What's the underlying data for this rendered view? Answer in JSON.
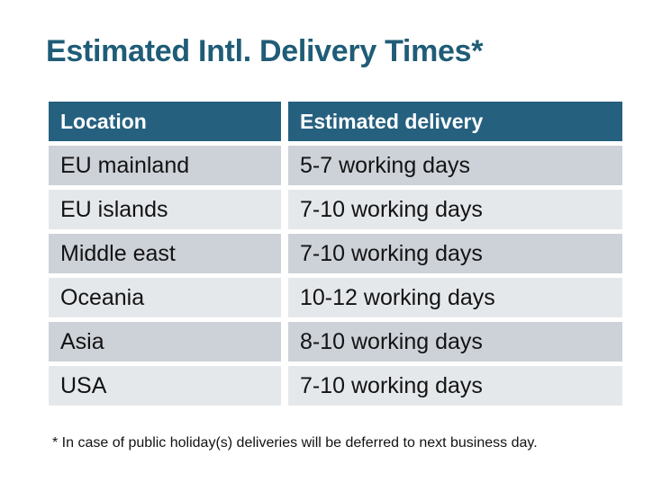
{
  "page": {
    "title": "Estimated Intl. Delivery Times*",
    "footnote": "* In case of public holiday(s) deliveries will be deferred to next business day."
  },
  "colors": {
    "title_text": "#1F5C77",
    "header_background": "#25607F",
    "header_text": "#FFFFFF",
    "row_dark": "#CDD1D8",
    "row_light": "#E5E8EB",
    "cell_text": "#131313",
    "page_background": "#FFFFFF"
  },
  "table": {
    "headers": {
      "location": "Location",
      "delivery": "Estimated delivery"
    },
    "rows": [
      {
        "location": "EU mainland",
        "delivery": "5-7 working days"
      },
      {
        "location": "EU islands",
        "delivery": "7-10 working days"
      },
      {
        "location": "Middle east",
        "delivery": "7-10 working days"
      },
      {
        "location": "Oceania",
        "delivery": "10-12 working days"
      },
      {
        "location": "Asia",
        "delivery": "8-10 working days"
      },
      {
        "location": "USA",
        "delivery": "7-10 working days"
      }
    ]
  },
  "chart_data": {
    "type": "table",
    "title": "Estimated Intl. Delivery Times*",
    "columns": [
      "Location",
      "Estimated delivery"
    ],
    "rows": [
      [
        "EU mainland",
        "5-7 working days"
      ],
      [
        "EU islands",
        "7-10 working days"
      ],
      [
        "Middle east",
        "7-10 working days"
      ],
      [
        "Oceania",
        "10-12 working days"
      ],
      [
        "Asia",
        "8-10 working days"
      ],
      [
        "USA",
        "7-10 working days"
      ]
    ],
    "footnote": "* In case of public holiday(s) deliveries will be deferred to next business day."
  }
}
